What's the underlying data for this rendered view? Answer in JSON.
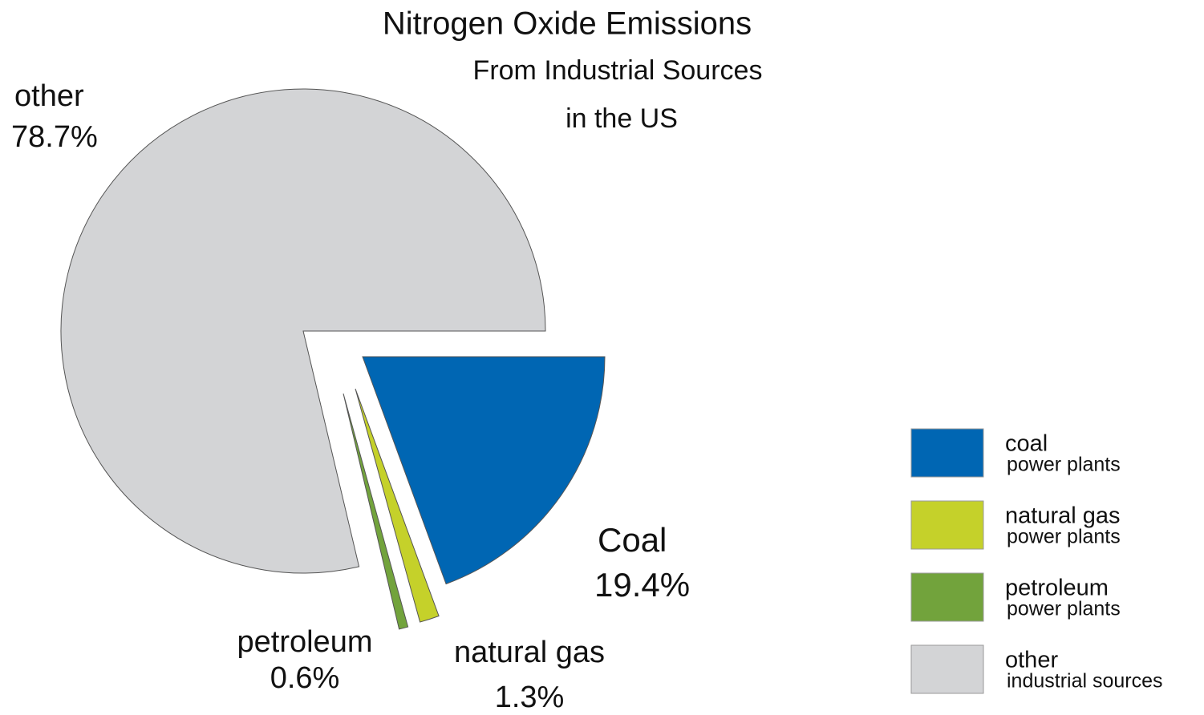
{
  "chart_data": {
    "type": "pie",
    "title": "Nitrogen Oxide Emissions",
    "subtitle": [
      "From Industrial Sources",
      "in the US"
    ],
    "categories": [
      "Coal",
      "natural gas",
      "petroleum",
      "other"
    ],
    "values": [
      19.4,
      1.3,
      0.6,
      78.7
    ],
    "value_labels": [
      "19.4%",
      "1.3%",
      "0.6%",
      "78.7%"
    ],
    "colors": [
      "#0066b3",
      "#c5d12a",
      "#72a33c",
      "#d3d4d6"
    ],
    "legend": [
      {
        "name": "coal",
        "detail": "power plants"
      },
      {
        "name": "natural gas",
        "detail": "power plants"
      },
      {
        "name": "petroleum",
        "detail": "power plants"
      },
      {
        "name": "other",
        "detail": "industrial sources"
      }
    ]
  }
}
